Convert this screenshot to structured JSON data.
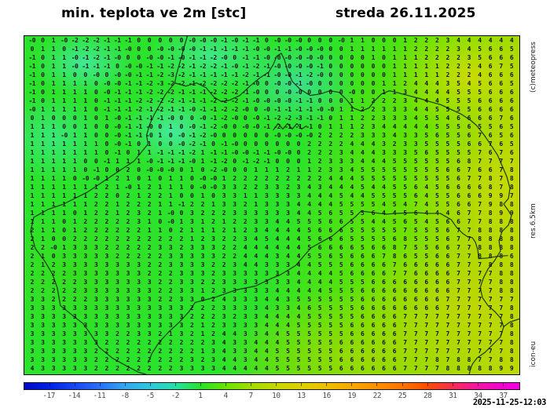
{
  "header": {
    "title": "min. teplota ve 2m [stc]",
    "date": "streda 26.11.2025"
  },
  "side_labels": {
    "copyright": "(c)meteopress",
    "resolution": "res.6.5km",
    "model": "icon-eu"
  },
  "footer": {
    "timestamp": "2025-11-25-12:03"
  },
  "chart_data": {
    "type": "heatmap",
    "title": "min. teplota ve 2m [stc]",
    "subtitle": "streda 26.11.2025",
    "units": "stc (deg C)",
    "model": "icon-eu",
    "resolution": "res.6.5km",
    "legend_position": "bottom",
    "colorbar": {
      "range": [
        -20,
        39
      ],
      "ticks": [
        -17,
        -14,
        -11,
        -8,
        -5,
        -2,
        1,
        4,
        7,
        10,
        13,
        16,
        19,
        22,
        25,
        28,
        31,
        34,
        37
      ],
      "stops": [
        {
          "v": -20,
          "c": "#0008c8"
        },
        {
          "v": -17,
          "c": "#0020e8"
        },
        {
          "v": -14,
          "c": "#1848f4"
        },
        {
          "v": -11,
          "c": "#2a70f8"
        },
        {
          "v": -8,
          "c": "#32a8ee"
        },
        {
          "v": -5,
          "c": "#2cc8dc"
        },
        {
          "v": -2,
          "c": "#26dfa6"
        },
        {
          "v": 1,
          "c": "#2ae22a"
        },
        {
          "v": 4,
          "c": "#6ae400"
        },
        {
          "v": 7,
          "c": "#a2dc00"
        },
        {
          "v": 10,
          "c": "#c6d800"
        },
        {
          "v": 13,
          "c": "#ddd000"
        },
        {
          "v": 16,
          "c": "#eec000"
        },
        {
          "v": 19,
          "c": "#f7a800"
        },
        {
          "v": 22,
          "c": "#fb9000"
        },
        {
          "v": 25,
          "c": "#fd7400"
        },
        {
          "v": 28,
          "c": "#fb4e00"
        },
        {
          "v": 31,
          "c": "#f62e52"
        },
        {
          "v": 34,
          "c": "#f415a4"
        },
        {
          "v": 37,
          "c": "#f203cf"
        },
        {
          "v": 39,
          "c": "#f500e4"
        }
      ]
    },
    "map_colors": {
      "green": "#2be32b",
      "spring_green_patch": "#42e896",
      "yellow_green": "#a5d900",
      "yellow": "#c2da00"
    },
    "grid_rows": [
      "-0 0 1 -0 -2 -2 -2 -1 -1 -1 0 0 0 0 0 -0 -0 -0 -1 -0 -1 -1 0 -0 -0 -0 0 0 0 -0 1 1 0 0 0 1 2 2 2 3 4 4 4 4 4 4",
      "0 1 1 0 -1 -2 -2 -1 -1 -0 0 0 -0 -0 -0 -0 -1 -1 -1 -1 -1 -0 -0 -1 -1 -0 -0 -0 0 0 1 1 1 1 1 1 2 2 2 2 3 4 5 6 6 5",
      "-1 0 1 1 -0 -1 -2 -1 -0 0 0 -0 -0 -1 -0 -1 -1 -2 -0 0 -1 -1 -0 -0 -0 -0 -0 -0 0 0 0 0 1 0 1 1 1 2 2 2 2 3 5 6 6 6",
      "-1 0 1 1 -0 -1 -1 -1 0 -0 -0 -1 -1 -2 -2 -1 -2 -2 -1 -0 -1 -2 -1 -0 -0 -0 -0 -1 0 0 0 0 0 0 1 1 1 1 1 2 2 2 4 6 7 5",
      "-1 0 1 1 0 0 -0 0 -0 -0 -1 -1 -2 -3 -2 -1 -1 -1 -1 -1 -2 -1 -1 -0 -0 -1 -2 -0 0 0 0 0 0 0 1 1 1 1 1 2 2 2 4 6 6 6",
      "-1 0 1 1 1 1 0 -0 -0 -1 -1 -2 -3 -2 -2 -1 -2 -2 -2 -2 -1 -0 0 -0 -0 -1 -0 0 0 0 0 0 0 1 1 2 4 4 4 3 5 4 5 6 6 5",
      "-1 0 1 1 1 1 0 -0 -1 -1 -1 -2 -2 -2 -1 -1 -1 -2 -2 -2 -1 -0 0 0 -0 -0 0 0 0 0 -0 0 0 1 1 3 4 4 4 4 5 5 5 6 6 6",
      "-1 0 1 1 1 1 0 -1 -1 -1 -2 -2 -2 -2 -1 -1 -1 -2 -2 -2 -1 -0 -0 -0 -0 -1 -1 0 0 0 1 1 2 2 2 3 4 4 4 5 5 5 6 6 6 6",
      "-0 1 1 1 1 1 0 -1 -1 -1 -2 -1 -2 -1 -1 -0 -1 -1 -2 -2 -0 0 -0 -1 -1 -1 -1 -0 -0 1 1 2 2 3 3 3 4 4 5 5 5 5 6 6 6 6",
      "0 1 0 0 0 1 0 1 -0 -1 -1 -1 -1 -0 0 0 -0 -1 -2 -0 0 -0 -1 -2 -2 -3 -1 -1 0 1 1 2 2 3 3 3 4 5 5 4 6 6 6 6 7 6",
      "1 1 1 0 0 1 0 0 -0 -1 -1 -0 0 1 0 -0 -1 -2 -0 0 -0 -0 -1 -2 -1 -1 -1 0 1 1 1 2 3 4 4 4 4 4 5 5 5 6 5 5 6 5",
      "1 1 1 -0 1 1 0 0 -0 -1 -1 -0 1 0 -0 -1 -2 -0 0 0 0 0 0 -0 -0 -0 -0 2 2 2 2 3 3 3 4 3 3 5 6 5 5 6 7 6 5 6",
      "1 1 1 1 1 1 1 0 -0 -1 0 1 0 0 -0 -2 -1 0 -1 -0 0 0 0 0 0 0 2 2 2 2 4 4 4 3 2 3 3 5 5 5 5 6 6 7 6 5",
      "1 1 1 1 1 1 1 0 -1 0 1 1 -1 -1 -1 -2 1 -1 -1 -0 -0 -1 -1 -0 -0 0 2 2 2 3 4 4 4 3 3 3 5 6 5 5 5 5 7 6 7 6",
      "1 1 1 1 1 0 0 -1 1 1 1 -0 -1 -1 -1 -0 1 -1 -2 0 -1 -2 -1 0 0 0 1 2 3 3 3 4 4 4 5 5 5 5 5 5 6 8 7 7 7 7",
      "1 1 1 1 1 0 -1 0 0 2 0 -0 -0 -0 0 1 0 -2 -0 0 0 1 1 1 2 1 1 2 3 3 4 5 5 5 5 5 5 5 5 6 6 7 6 6 7 8",
      "1 1 1 1 0 -0 -0 1 2 1 0 1 0 1 1 0 -0 -0 1 2 2 2 2 2 2 2 2 2 4 4 4 5 5 5 5 5 5 5 5 5 6 7 7 8 7 8",
      "1 1 1 1 1 1 1 2 1 -0 1 2 1 1 1 0 -0 -0 3 3 2 2 3 3 2 3 4 3 4 4 4 5 4 4 5 5 6 4 5 6 6 6 6 8 7 8",
      "1 1 1 1 1 1 2 2 0 2 1 2 2 1 0 0 1 0 3 3 1 1 3 3 3 3 4 4 4 5 4 4 5 5 5 5 6 4 5 5 6 6 6 9 9 7",
      "1 1 1 1 1 1 2 2 1 2 2 2 1 1 -1 2 2 1 3 3 2 1 3 3 3 4 4 4 4 5 5 5 5 4 5 4 7 4 5 5 6 6 7 9 8 8",
      "1 1 1 1 0 1 2 2 1 2 3 2 1 -0 0 3 2 2 2 3 3 3 3 3 3 4 4 5 6 5 5 5 6 4 4 5 6 4 4 4 6 7 7 8 9 9",
      "1 1 1 0 1 2 2 2 2 2 3 1 0 -0 1 3 1 2 1 2 2 3 3 4 4 5 5 5 6 6 5 5 4 4 5 6 5 4 5 6 6 7 7 8 8 8",
      "2 1 1 0 1 2 2 2 2 2 2 1 1 0 2 1 1 1 2 1 2 3 4 4 4 4 5 6 6 6 5 5 5 5 5 7 5 5 5 6 7 7 8 8 8 8",
      "2 1 0 0 2 2 2 2 2 2 2 2 2 2 2 1 2 3 2 2 3 4 5 4 4 4 5 6 6 6 5 5 5 5 6 8 5 5 5 6 7 7 8 8 8 8",
      "2 2 -0 1 3 3 3 2 2 2 2 2 3 3 2 3 3 3 2 2 4 4 4 4 4 4 5 6 6 6 6 5 6 6 8 7 5 5 6 6 7 7 8 8 8 8",
      "2 1 0 3 3 3 3 3 2 2 2 2 2 3 3 3 3 3 2 2 4 4 4 3 4 4 5 5 6 5 6 6 6 7 8 6 5 5 6 6 7 7 8 8 8 6",
      "2 1 2 3 3 3 3 3 3 3 3 2 2 3 3 3 3 2 2 3 4 4 3 3 3 4 4 5 5 5 6 6 6 6 7 6 6 6 6 6 7 7 7 8 8 8",
      "2 2 2 2 3 3 3 3 3 3 3 2 2 2 3 3 3 2 3 3 3 3 3 3 3 4 4 4 4 5 6 6 6 6 7 7 6 6 6 6 7 7 7 7 8 8",
      "2 2 2 2 2 3 3 3 3 3 3 3 2 2 3 3 2 2 3 3 3 3 3 3 3 4 4 4 4 5 5 5 6 6 6 6 6 6 6 6 7 7 7 7 8 8",
      "2 2 2 2 2 3 3 3 3 3 3 3 2 2 3 3 1 2 3 3 3 3 3 4 4 4 4 4 5 5 5 6 6 6 6 6 6 6 6 6 7 7 7 7 8 8",
      "3 3 2 2 2 2 3 3 3 3 3 3 2 2 3 3 0 2 4 3 3 3 4 4 3 5 5 5 5 5 5 6 6 6 6 6 6 6 6 7 7 7 7 7 7 7",
      "3 3 3 3 3 3 3 3 3 3 3 3 3 3 3 2 2 2 3 3 3 3 4 3 3 4 6 5 5 5 5 6 6 6 6 6 6 6 6 7 7 7 7 7 7 8",
      "3 3 3 3 3 3 3 3 3 3 3 3 3 3 3 2 2 2 3 2 3 3 4 4 4 4 5 5 5 5 5 6 6 6 6 7 7 7 7 7 7 7 7 7 7 8",
      "3 3 3 3 3 3 3 3 3 3 3 3 3 3 3 2 1 2 3 3 3 3 4 4 4 5 5 5 5 5 6 6 6 6 6 7 7 7 7 7 7 7 7 7 7 8",
      "3 3 3 3 3 3 3 3 2 2 3 3 2 1 3 2 1 2 4 4 3 3 4 4 5 5 5 5 5 5 6 6 6 6 6 7 7 7 7 7 7 7 7 7 7 8",
      "3 3 3 3 3 3 3 2 2 2 2 2 2 2 2 2 2 3 4 3 3 4 4 4 5 5 5 5 5 6 6 6 6 6 6 7 7 7 7 7 7 7 7 7 7 8",
      "3 3 3 3 3 3 2 2 2 2 2 2 2 2 2 2 1 3 4 3 3 4 4 5 5 5 5 5 5 6 6 6 6 6 6 7 7 7 7 7 7 7 7 7 7 8",
      "3 3 3 3 3 3 2 2 2 2 2 2 2 2 2 3 2 3 4 4 3 4 4 5 5 5 5 5 5 6 6 6 6 6 6 7 7 7 8 7 8 8 7 7 8 8",
      "4 3 3 3 3 3 2 2 2 2 2 2 2 2 3 3 3 3 4 4 4 4 4 5 5 5 5 5 5 6 6 6 6 6 6 7 7 7 7 8 8 8 8 8 9 9"
    ]
  }
}
